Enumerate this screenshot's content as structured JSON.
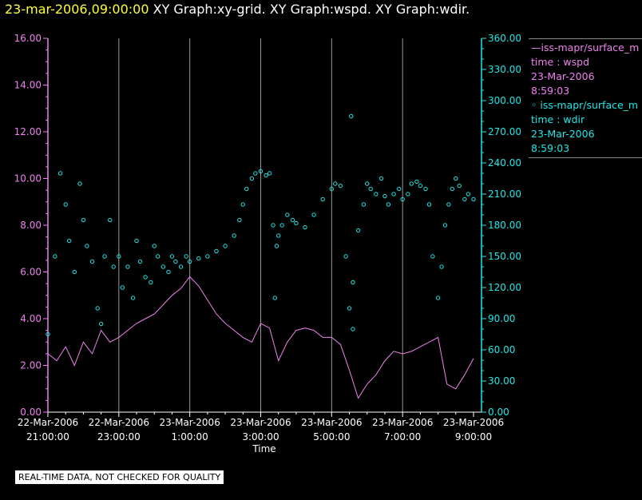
{
  "header": {
    "timestamp": "23-mar-2006,09:00:00",
    "graphs": "XY Graph:xy-grid.  XY Graph:wspd.  XY Graph:wdir."
  },
  "legend": {
    "wspd": {
      "name": "—iss-mapr/surface_m",
      "line2": "time : wspd",
      "line3": "23-Mar-2006",
      "line4": "8:59:03"
    },
    "wdir": {
      "name": "◦ iss-mapr/surface_m",
      "line2": "time : wdir",
      "line3": "23-Mar-2006",
      "line4": "8:59:03"
    }
  },
  "note": "REAL-TIME DATA, NOT CHECKED FOR QUALITY",
  "colors": {
    "wspd": "#ee82ee",
    "wdir": "#22e6e6",
    "grid": "#9a9a9a",
    "title_time": "#ffff33"
  },
  "chart_data": {
    "type": "scatter",
    "title": "23-mar-2006,09:00:00  XY Graph:xy-grid.  XY Graph:wspd.  XY Graph:wdir.",
    "xlabel": "Time",
    "x_unit": "hours since 22-Mar-2006 21:00:00",
    "xlim": [
      0,
      12
    ],
    "x_ticks": [
      {
        "x": 0,
        "line1": "22-Mar-2006",
        "line2": "21:00:00"
      },
      {
        "x": 2,
        "line1": "22-Mar-2006",
        "line2": "23:00:00"
      },
      {
        "x": 4,
        "line1": "23-Mar-2006",
        "line2": "1:00:00"
      },
      {
        "x": 6,
        "line1": "23-Mar-2006",
        "line2": "3:00:00"
      },
      {
        "x": 8,
        "line1": "23-Mar-2006",
        "line2": "5:00:00"
      },
      {
        "x": 10,
        "line1": "23-Mar-2006",
        "line2": "7:00:00"
      },
      {
        "x": 12,
        "line1": "23-Mar-2006",
        "line2": "9:00:00"
      }
    ],
    "y_left": {
      "label": "wspd",
      "range": [
        0,
        16
      ],
      "ticks": [
        "0.00",
        "2.00",
        "4.00",
        "6.00",
        "8.00",
        "10.00",
        "12.00",
        "14.00",
        "16.00"
      ]
    },
    "y_right": {
      "label": "wdir",
      "range": [
        0,
        360
      ],
      "ticks": [
        "0.00",
        "30.00",
        "60.00",
        "90.00",
        "120.00",
        "150.00",
        "180.00",
        "210.00",
        "240.00",
        "270.00",
        "300.00",
        "330.00",
        "360.00"
      ]
    },
    "series": [
      {
        "name": "wspd",
        "axis": "left",
        "style": "line",
        "x": [
          0,
          0.25,
          0.5,
          0.75,
          1,
          1.25,
          1.5,
          1.75,
          2,
          2.25,
          2.5,
          2.75,
          3,
          3.25,
          3.5,
          3.75,
          4,
          4.25,
          4.5,
          4.75,
          5,
          5.25,
          5.5,
          5.75,
          6,
          6.25,
          6.5,
          6.75,
          7,
          7.25,
          7.5,
          7.75,
          8,
          8.25,
          8.5,
          8.75,
          9,
          9.25,
          9.5,
          9.75,
          10,
          10.25,
          10.5,
          10.75,
          11,
          11.25,
          11.5,
          11.75,
          12
        ],
        "y": [
          2.5,
          2.2,
          2.8,
          2.0,
          3.0,
          2.5,
          3.5,
          3.0,
          3.2,
          3.5,
          3.8,
          4.0,
          4.2,
          4.6,
          5.0,
          5.3,
          5.8,
          5.4,
          4.8,
          4.2,
          3.8,
          3.5,
          3.2,
          3.0,
          3.8,
          3.6,
          2.2,
          3.0,
          3.5,
          3.6,
          3.5,
          3.2,
          3.2,
          2.9,
          1.8,
          0.6,
          1.2,
          1.6,
          2.2,
          2.6,
          2.5,
          2.6,
          2.8,
          3.0,
          3.2,
          1.2,
          1.0,
          1.6,
          2.3
        ]
      },
      {
        "name": "wdir",
        "axis": "right",
        "style": "markers",
        "x": [
          0,
          0.2,
          0.35,
          0.5,
          0.6,
          0.75,
          0.9,
          1.0,
          1.1,
          1.25,
          1.4,
          1.5,
          1.6,
          1.75,
          1.85,
          2.0,
          2.1,
          2.25,
          2.4,
          2.5,
          2.6,
          2.75,
          2.9,
          3.0,
          3.1,
          3.25,
          3.4,
          3.5,
          3.6,
          3.75,
          3.9,
          4.0,
          4.25,
          4.5,
          4.75,
          5.0,
          5.25,
          5.4,
          5.5,
          5.6,
          5.75,
          5.85,
          6.0,
          6.15,
          6.25,
          6.35,
          6.4,
          6.45,
          6.5,
          6.6,
          6.75,
          6.9,
          7.0,
          7.25,
          7.5,
          7.75,
          8.0,
          8.1,
          8.25,
          8.4,
          8.5,
          8.6,
          8.75,
          8.9,
          9.0,
          9.1,
          9.25,
          9.4,
          9.5,
          9.6,
          9.75,
          9.9,
          10.0,
          10.15,
          10.25,
          10.4,
          10.5,
          10.65,
          10.75,
          10.85,
          11.0,
          11.1,
          11.2,
          11.3,
          11.4,
          11.5,
          11.6,
          11.75,
          11.85,
          12.0
        ],
        "y": [
          75,
          150,
          230,
          200,
          165,
          135,
          220,
          185,
          160,
          145,
          100,
          85,
          150,
          185,
          140,
          150,
          120,
          140,
          110,
          165,
          145,
          130,
          125,
          160,
          150,
          140,
          135,
          150,
          145,
          140,
          150,
          145,
          148,
          150,
          155,
          160,
          170,
          185,
          200,
          215,
          225,
          230,
          232,
          228,
          230,
          180,
          110,
          160,
          170,
          180,
          190,
          185,
          182,
          178,
          190,
          205,
          215,
          220,
          218,
          150,
          100,
          125,
          175,
          200,
          220,
          215,
          210,
          225,
          208,
          200,
          210,
          215,
          205,
          210,
          220,
          222,
          218,
          215,
          200,
          150,
          110,
          140,
          180,
          200,
          215,
          225,
          218,
          205,
          210,
          205
        ]
      },
      {
        "name": "wdir_outlier",
        "axis": "right",
        "style": "markers",
        "x": [
          8.55,
          8.6
        ],
        "y": [
          285,
          80
        ]
      }
    ]
  }
}
